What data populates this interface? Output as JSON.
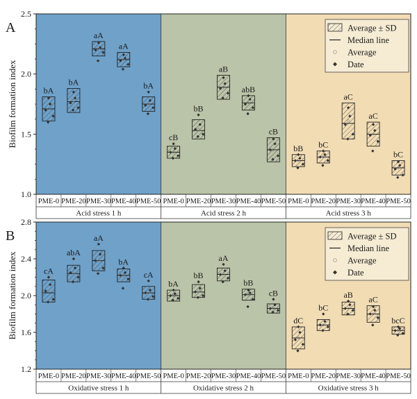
{
  "chart_data": [
    {
      "type": "box",
      "panel_label": "A",
      "ylabel": "Biofilm formation index",
      "ylim": [
        1.0,
        2.5
      ],
      "yticks": [
        "1.0",
        "1.5",
        "2.0",
        "2.5"
      ],
      "legend": {
        "placement": "top-right",
        "items": [
          "Average ± SD",
          "Median line",
          "Average",
          "Date"
        ]
      },
      "groups": [
        {
          "name": "Acid stress 1 h",
          "color": "#6fa1c9",
          "boxes": [
            {
              "category": "PME-0",
              "label": "bA",
              "mean": 1.71,
              "sd": 0.1,
              "median": 1.71,
              "points": [
                1.8,
                1.75,
                1.7,
                1.65,
                1.6
              ]
            },
            {
              "category": "PME-20",
              "label": "bA",
              "mean": 1.78,
              "sd": 0.1,
              "median": 1.77,
              "points": [
                1.85,
                1.8,
                1.76,
                1.72,
                1.7
              ]
            },
            {
              "category": "PME-30",
              "label": "aA",
              "mean": 2.21,
              "sd": 0.06,
              "median": 2.21,
              "points": [
                2.26,
                2.22,
                2.2,
                2.18,
                2.11
              ]
            },
            {
              "category": "PME-40",
              "label": "aA",
              "mean": 2.12,
              "sd": 0.06,
              "median": 2.12,
              "points": [
                2.16,
                2.13,
                2.11,
                2.08,
                2.04
              ]
            },
            {
              "category": "PME-50",
              "label": "bA",
              "mean": 1.75,
              "sd": 0.06,
              "median": 1.75,
              "points": [
                1.85,
                1.78,
                1.74,
                1.72,
                1.67
              ]
            }
          ]
        },
        {
          "name": "Acid stress 2 h",
          "color": "#b9c4a8",
          "boxes": [
            {
              "category": "PME-0",
              "label": "cB",
              "mean": 1.35,
              "sd": 0.05,
              "median": 1.35,
              "points": [
                1.42,
                1.38,
                1.35,
                1.32,
                1.3
              ]
            },
            {
              "category": "PME-20",
              "label": "bB",
              "mean": 1.54,
              "sd": 0.08,
              "median": 1.53,
              "points": [
                1.66,
                1.58,
                1.54,
                1.5,
                1.48
              ]
            },
            {
              "category": "PME-30",
              "label": "aB",
              "mean": 1.89,
              "sd": 0.1,
              "median": 1.89,
              "points": [
                1.97,
                1.92,
                1.88,
                1.84,
                1.8
              ]
            },
            {
              "category": "PME-40",
              "label": "abB",
              "mean": 1.76,
              "sd": 0.06,
              "median": 1.76,
              "points": [
                1.82,
                1.79,
                1.75,
                1.72,
                1.67
              ]
            },
            {
              "category": "PME-50",
              "label": "cB",
              "mean": 1.37,
              "sd": 0.1,
              "median": 1.37,
              "points": [
                1.46,
                1.42,
                1.37,
                1.32,
                1.29
              ]
            }
          ]
        },
        {
          "name": "Acid stress 3 h",
          "color": "#f1dcb4",
          "boxes": [
            {
              "category": "PME-0",
              "label": "bB",
              "mean": 1.28,
              "sd": 0.05,
              "median": 1.28,
              "points": [
                1.33,
                1.3,
                1.28,
                1.25,
                1.22
              ]
            },
            {
              "category": "PME-20",
              "label": "bC",
              "mean": 1.31,
              "sd": 0.05,
              "median": 1.31,
              "points": [
                1.36,
                1.33,
                1.31,
                1.28,
                1.24
              ]
            },
            {
              "category": "PME-30",
              "label": "aC",
              "mean": 1.61,
              "sd": 0.15,
              "median": 1.59,
              "points": [
                1.72,
                1.65,
                1.58,
                1.5,
                1.46
              ]
            },
            {
              "category": "PME-40",
              "label": "aC",
              "mean": 1.5,
              "sd": 0.1,
              "median": 1.5,
              "points": [
                1.58,
                1.53,
                1.49,
                1.44,
                1.36
              ]
            },
            {
              "category": "PME-50",
              "label": "bC",
              "mean": 1.22,
              "sd": 0.06,
              "median": 1.22,
              "points": [
                1.27,
                1.24,
                1.21,
                1.16,
                1.14
              ]
            }
          ]
        }
      ]
    },
    {
      "type": "box",
      "panel_label": "B",
      "ylabel": "Biofilm formation index",
      "ylim": [
        1.2,
        2.8
      ],
      "yticks": [
        "1.2",
        "1.6",
        "2.0",
        "2.4",
        "2.8"
      ],
      "legend": {
        "placement": "top-right",
        "items": [
          "Average ± SD",
          "Median line",
          "Average",
          "Date"
        ]
      },
      "groups": [
        {
          "name": "Oxidative stress 1 h",
          "color": "#6fa1c9",
          "boxes": [
            {
              "category": "PME-0",
              "label": "cA",
              "mean": 2.05,
              "sd": 0.12,
              "median": 2.03,
              "points": [
                2.2,
                2.12,
                2.05,
                1.96,
                1.93
              ]
            },
            {
              "category": "PME-20",
              "label": "abA",
              "mean": 2.24,
              "sd": 0.09,
              "median": 2.24,
              "points": [
                2.4,
                2.3,
                2.25,
                2.2,
                2.15
              ]
            },
            {
              "category": "PME-30",
              "label": "aA",
              "mean": 2.38,
              "sd": 0.11,
              "median": 2.38,
              "points": [
                2.56,
                2.45,
                2.38,
                2.3,
                2.24
              ]
            },
            {
              "category": "PME-40",
              "label": "bA",
              "mean": 2.22,
              "sd": 0.07,
              "median": 2.22,
              "points": [
                2.3,
                2.25,
                2.22,
                2.18,
                2.08
              ]
            },
            {
              "category": "PME-50",
              "label": "cA",
              "mean": 2.03,
              "sd": 0.07,
              "median": 2.03,
              "points": [
                2.16,
                2.06,
                2.03,
                1.99,
                1.96
              ]
            }
          ]
        },
        {
          "name": "Oxidative stress 2 h",
          "color": "#b9c4a8",
          "boxes": [
            {
              "category": "PME-0",
              "label": "bA",
              "mean": 2.0,
              "sd": 0.06,
              "median": 2.0,
              "points": [
                2.06,
                2.02,
                2.0,
                1.97,
                1.95
              ]
            },
            {
              "category": "PME-20",
              "label": "bB",
              "mean": 2.05,
              "sd": 0.07,
              "median": 2.04,
              "points": [
                2.15,
                2.08,
                2.04,
                2.0,
                1.98
              ]
            },
            {
              "category": "PME-30",
              "label": "aA",
              "mean": 2.23,
              "sd": 0.07,
              "median": 2.23,
              "points": [
                2.34,
                2.27,
                2.23,
                2.19,
                2.15
              ]
            },
            {
              "category": "PME-40",
              "label": "bB",
              "mean": 2.01,
              "sd": 0.06,
              "median": 2.01,
              "points": [
                2.06,
                2.03,
                2.01,
                1.96,
                1.88
              ]
            },
            {
              "category": "PME-50",
              "label": "cB",
              "mean": 1.86,
              "sd": 0.05,
              "median": 1.86,
              "points": [
                1.96,
                1.9,
                1.86,
                1.84,
                1.82
              ]
            }
          ]
        },
        {
          "name": "Oxidative stress 3 h",
          "color": "#f1dcb4",
          "boxes": [
            {
              "category": "PME-0",
              "label": "dC",
              "mean": 1.54,
              "sd": 0.12,
              "median": 1.54,
              "points": [
                1.66,
                1.6,
                1.52,
                1.47,
                1.4
              ]
            },
            {
              "category": "PME-20",
              "label": "bC",
              "mean": 1.68,
              "sd": 0.06,
              "median": 1.68,
              "points": [
                1.8,
                1.72,
                1.68,
                1.66,
                1.62
              ]
            },
            {
              "category": "PME-30",
              "label": "aB",
              "mean": 1.86,
              "sd": 0.07,
              "median": 1.86,
              "points": [
                1.94,
                1.9,
                1.86,
                1.84,
                1.8
              ]
            },
            {
              "category": "PME-40",
              "label": "aC",
              "mean": 1.8,
              "sd": 0.09,
              "median": 1.8,
              "points": [
                1.88,
                1.84,
                1.8,
                1.76,
                1.68
              ]
            },
            {
              "category": "PME-50",
              "label": "bcC",
              "mean": 1.62,
              "sd": 0.04,
              "median": 1.62,
              "points": [
                1.66,
                1.64,
                1.62,
                1.59,
                1.57
              ]
            }
          ]
        }
      ]
    }
  ]
}
